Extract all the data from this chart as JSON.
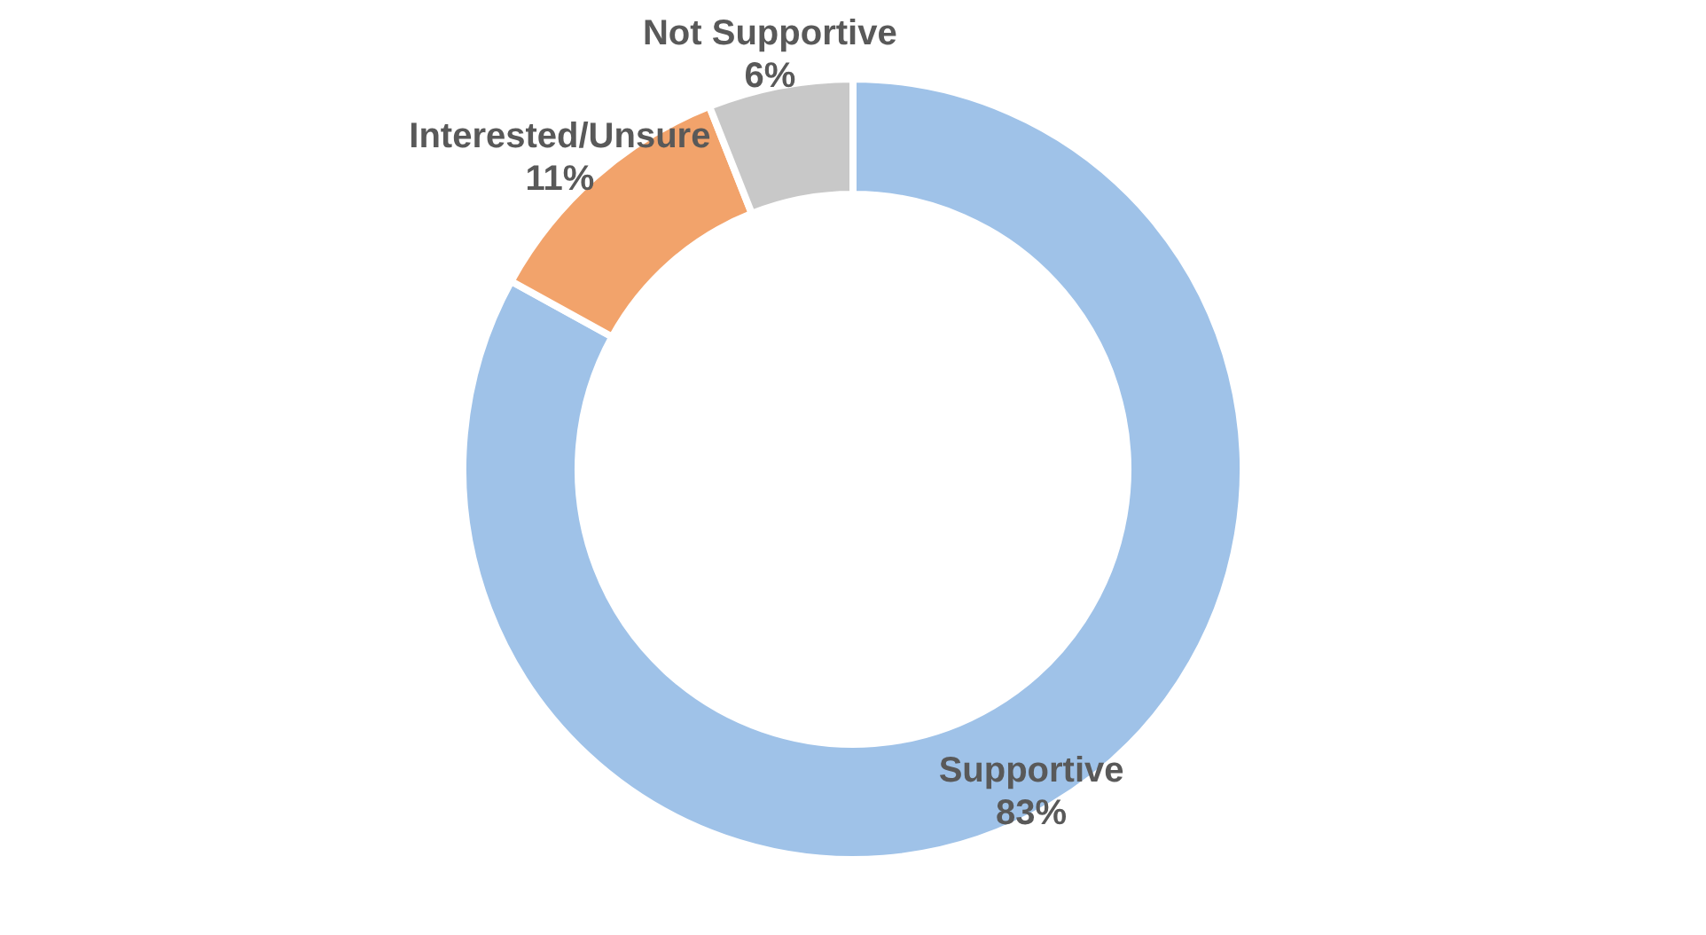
{
  "chart_data": {
    "type": "donut",
    "categories": [
      "Supportive",
      "Interested/Unsure",
      "Not Supportive"
    ],
    "values": [
      83,
      11,
      6
    ],
    "colors": [
      "#9fc2e8",
      "#f2a36b",
      "#c8c8c8"
    ],
    "value_labels": [
      "83%",
      "11%",
      "6%"
    ]
  }
}
